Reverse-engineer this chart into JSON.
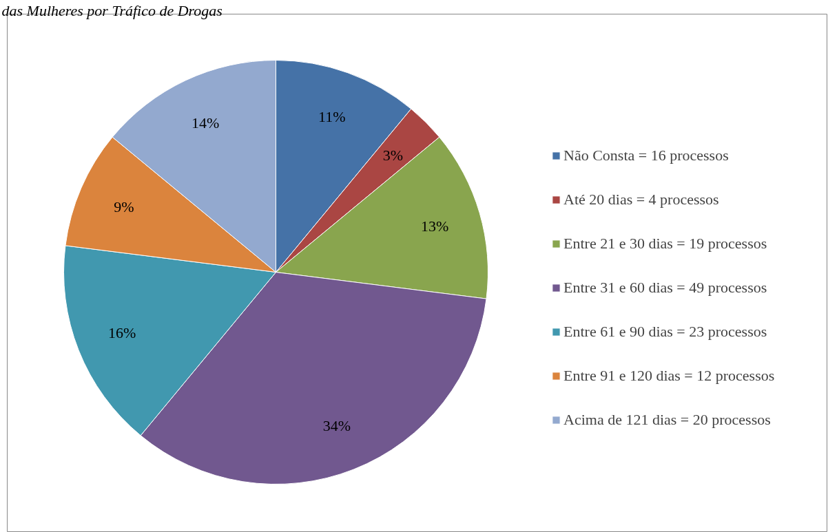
{
  "chart_data": {
    "type": "pie",
    "title": "das Mulheres por Tráfico de Drogas",
    "categories": [
      "Não Consta = 16 processos",
      "Até 20 dias = 4 processos",
      "Entre 21 e 30 dias = 19 processos",
      "Entre 31 e 60 dias = 49 processos",
      "Entre 61 e 90 dias = 23 processos",
      "Entre 91 e 120 dias = 12 processos",
      "Acima de 121 dias = 20 processos"
    ],
    "values": [
      11,
      3,
      13,
      34,
      16,
      9,
      14
    ],
    "value_labels": [
      "11%",
      "3%",
      "13%",
      "34%",
      "16%",
      "9%",
      "14%"
    ],
    "colors": [
      "#4572a7",
      "#aa4643",
      "#89a54e",
      "#71588f",
      "#4198af",
      "#db843d",
      "#93a9cf"
    ],
    "legend": "right"
  }
}
